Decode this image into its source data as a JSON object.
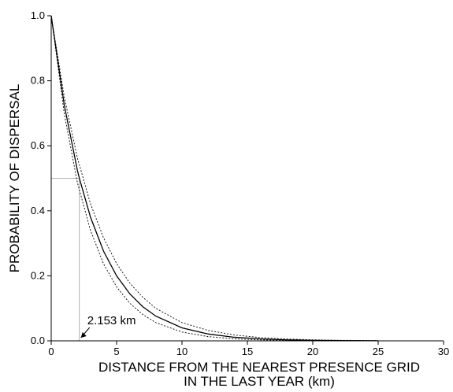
{
  "chart_data": {
    "type": "line",
    "title": "",
    "xlabel_lines": [
      "DISTANCE FROM THE NEAREST PRESENCE GRID",
      "IN THE LAST YEAR (km)"
    ],
    "ylabel": "PROBABILITY OF DISPERSAL",
    "xlim": [
      0,
      30
    ],
    "ylim": [
      0,
      1.0
    ],
    "x_ticks": [
      0,
      5,
      10,
      15,
      20,
      25,
      30
    ],
    "x_tick_labels": [
      "0",
      "5",
      "10",
      "15",
      "20",
      "25",
      "30"
    ],
    "y_ticks": [
      0,
      0.2,
      0.4,
      0.6,
      0.8,
      1.0
    ],
    "y_tick_labels": [
      "0.0",
      "0.2",
      "0.4",
      "0.6",
      "0.8",
      "1.0"
    ],
    "grid": false,
    "legend": "none",
    "series": [
      {
        "style": "solid",
        "x": [
          0,
          1,
          2,
          2.153,
          3,
          4,
          5,
          6,
          7,
          8,
          10,
          12,
          14,
          16,
          18,
          20,
          22,
          25
        ],
        "y": [
          1.0,
          0.725,
          0.525,
          0.5,
          0.381,
          0.276,
          0.2,
          0.145,
          0.105,
          0.076,
          0.04,
          0.021,
          0.011,
          0.006,
          0.003,
          0.0016,
          0.0008,
          0.0003
        ]
      },
      {
        "style": "dotted",
        "x": [
          0,
          1,
          2,
          3,
          4,
          5,
          6,
          7,
          8,
          10,
          12,
          14,
          16,
          18,
          20,
          22,
          25
        ],
        "y": [
          1.0,
          0.698,
          0.487,
          0.34,
          0.237,
          0.166,
          0.116,
          0.081,
          0.056,
          0.027,
          0.013,
          0.006,
          0.003,
          0.0015,
          0.0007,
          0.0004,
          0.0001
        ]
      },
      {
        "style": "dotted",
        "x": [
          0,
          1,
          2,
          3,
          4,
          5,
          6,
          7,
          8,
          10,
          12,
          14,
          16,
          18,
          20,
          22,
          25
        ],
        "y": [
          1.0,
          0.75,
          0.563,
          0.422,
          0.317,
          0.238,
          0.178,
          0.134,
          0.1,
          0.056,
          0.032,
          0.018,
          0.01,
          0.0057,
          0.0032,
          0.0018,
          0.0008
        ]
      }
    ],
    "reference": {
      "x": 2.153,
      "y": 0.5
    },
    "annotations": [
      {
        "text": "2.153 km",
        "x": 2.153,
        "y": 0
      }
    ]
  }
}
